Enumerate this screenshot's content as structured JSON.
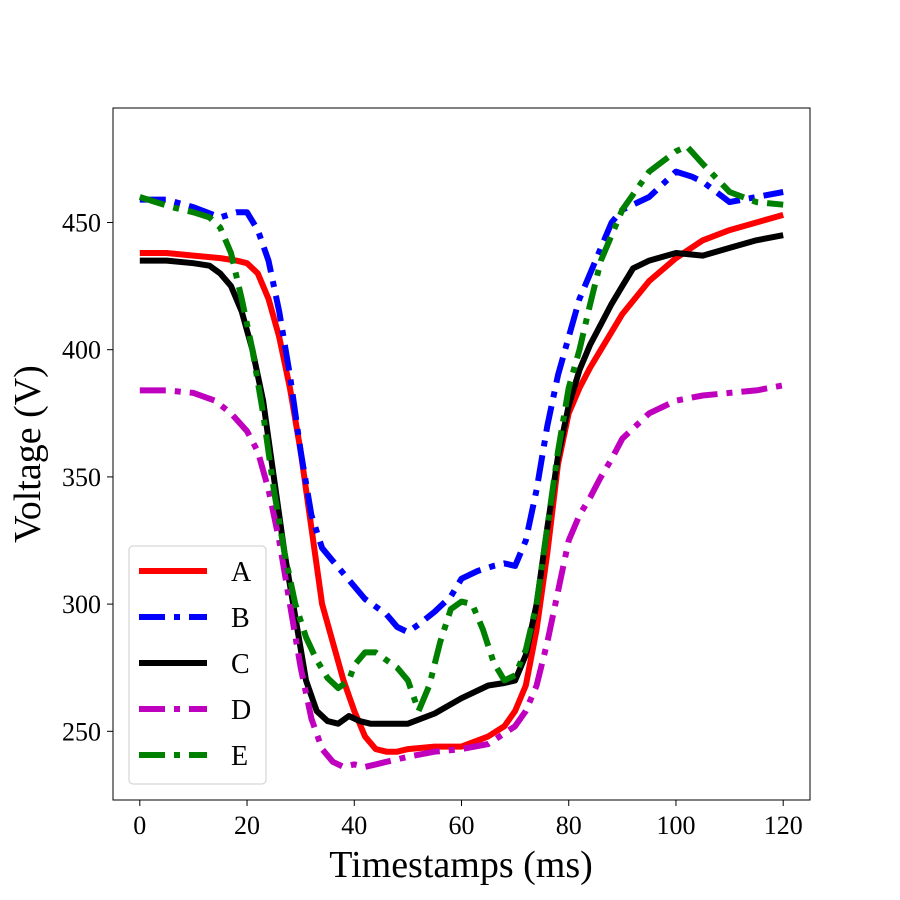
{
  "chart_data": {
    "type": "line",
    "xlabel": "Timestamps (ms)",
    "ylabel": "Voltage (V)",
    "xlim": [
      -5,
      125
    ],
    "ylim": [
      223,
      495
    ],
    "xticks": [
      0,
      20,
      40,
      60,
      80,
      100,
      120
    ],
    "yticks": [
      250,
      300,
      350,
      400,
      450
    ],
    "grid": false,
    "legend_position": "lower-left",
    "series": [
      {
        "name": "A",
        "color": "#ff0000",
        "dash": "solid",
        "x": [
          0,
          5,
          10,
          15,
          18,
          20,
          22,
          24,
          26,
          28,
          30,
          32,
          34,
          36,
          38,
          40,
          42,
          44,
          46,
          48,
          50,
          55,
          60,
          65,
          68,
          70,
          72,
          74,
          76,
          78,
          80,
          82,
          84,
          86,
          88,
          90,
          95,
          100,
          105,
          110,
          115,
          120
        ],
        "y": [
          438,
          438,
          437,
          436,
          435,
          434,
          430,
          420,
          405,
          385,
          360,
          330,
          300,
          285,
          270,
          258,
          248,
          243,
          242,
          242,
          243,
          244,
          244,
          248,
          252,
          258,
          268,
          290,
          320,
          355,
          375,
          385,
          393,
          400,
          407,
          414,
          427,
          436,
          443,
          447,
          450,
          453
        ]
      },
      {
        "name": "B",
        "color": "#0000ff",
        "dash": "dashdot",
        "x": [
          0,
          5,
          10,
          15,
          18,
          20,
          22,
          24,
          26,
          28,
          30,
          32,
          34,
          36,
          38,
          40,
          42,
          44,
          46,
          48,
          50,
          52,
          55,
          58,
          60,
          63,
          66,
          68,
          70,
          72,
          74,
          76,
          78,
          80,
          82,
          84,
          86,
          88,
          90,
          95,
          100,
          103,
          105,
          110,
          115,
          120
        ],
        "y": [
          459,
          459,
          456,
          452,
          454,
          454,
          447,
          435,
          415,
          390,
          360,
          335,
          322,
          317,
          312,
          307,
          302,
          299,
          296,
          291,
          289,
          292,
          297,
          303,
          310,
          313,
          315,
          316,
          315,
          325,
          345,
          370,
          390,
          405,
          420,
          430,
          440,
          450,
          455,
          460,
          470,
          468,
          466,
          458,
          460,
          462
        ]
      },
      {
        "name": "C",
        "color": "#000000",
        "dash": "solid",
        "x": [
          0,
          5,
          10,
          13,
          15,
          17,
          19,
          21,
          23,
          25,
          27,
          29,
          31,
          33,
          35,
          37,
          39,
          41,
          43,
          45,
          48,
          50,
          55,
          60,
          65,
          68,
          70,
          72,
          74,
          76,
          78,
          80,
          82,
          84,
          86,
          88,
          90,
          92,
          95,
          100,
          105,
          110,
          115,
          120
        ],
        "y": [
          435,
          435,
          434,
          433,
          430,
          425,
          415,
          400,
          380,
          350,
          320,
          295,
          270,
          258,
          254,
          253,
          256,
          254,
          253,
          253,
          253,
          253,
          257,
          263,
          268,
          269,
          270,
          280,
          300,
          330,
          358,
          378,
          392,
          402,
          410,
          418,
          425,
          432,
          435,
          438,
          437,
          440,
          443,
          445
        ]
      },
      {
        "name": "D",
        "color": "#bf00bf",
        "dash": "dashdot",
        "x": [
          0,
          5,
          10,
          14,
          17,
          20,
          22,
          24,
          26,
          28,
          30,
          32,
          34,
          36,
          38,
          40,
          42,
          44,
          46,
          48,
          50,
          55,
          60,
          65,
          70,
          72,
          74,
          76,
          78,
          80,
          82,
          84,
          86,
          88,
          90,
          95,
          100,
          105,
          110,
          115,
          120
        ],
        "y": [
          384,
          384,
          383,
          380,
          375,
          368,
          360,
          345,
          325,
          300,
          275,
          255,
          243,
          238,
          236,
          237,
          236,
          237,
          238,
          239,
          240,
          242,
          243,
          245,
          252,
          258,
          268,
          285,
          305,
          325,
          335,
          342,
          350,
          357,
          365,
          375,
          380,
          382,
          383,
          384,
          386
        ]
      },
      {
        "name": "E",
        "color": "#008000",
        "dash": "dashdot",
        "x": [
          0,
          3,
          6,
          10,
          13,
          15,
          17,
          19,
          21,
          23,
          25,
          27,
          29,
          31,
          33,
          35,
          37,
          39,
          40,
          42,
          44,
          46,
          48,
          50,
          52,
          54,
          56,
          58,
          60,
          62,
          64,
          66,
          68,
          70,
          72,
          74,
          76,
          78,
          80,
          82,
          84,
          86,
          88,
          90,
          95,
          100,
          102,
          105,
          110,
          115,
          120
        ],
        "y": [
          460,
          458,
          456,
          454,
          452,
          448,
          438,
          420,
          400,
          375,
          345,
          320,
          300,
          287,
          278,
          271,
          267,
          270,
          276,
          281,
          281,
          278,
          275,
          270,
          258,
          268,
          285,
          298,
          301,
          300,
          290,
          277,
          270,
          272,
          282,
          300,
          330,
          360,
          385,
          400,
          418,
          435,
          445,
          455,
          470,
          478,
          480,
          473,
          462,
          458,
          457
        ]
      }
    ]
  }
}
